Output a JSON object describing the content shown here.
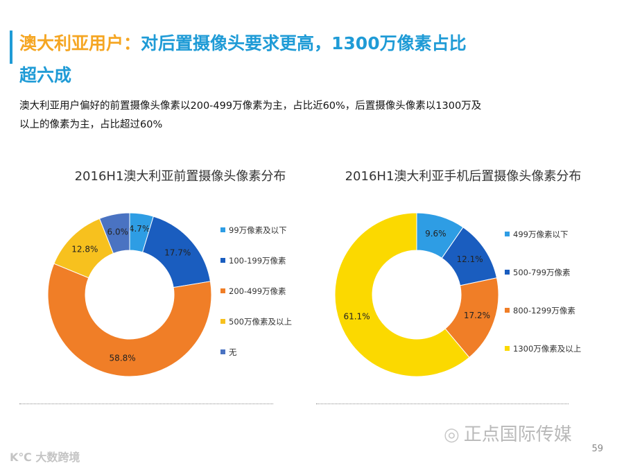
{
  "header": {
    "title_part1": "澳大利亚用户：",
    "title_part2": "对后置摄像头要求更高，1300万像素占比",
    "title_part3": "超六成"
  },
  "description": {
    "line1": "澳大利亚用户偏好的前置摄像头像素以200-499万像素为主，占比近60%，后置摄像头像素以1300万及",
    "line2": "以上的像素为主，占比超过60%"
  },
  "colors": {
    "accent": "#1f9bd6",
    "title_orange": "#f5a623"
  },
  "chart_data": [
    {
      "type": "pie",
      "title": "2016H1澳大利亚前置摄像头像素分布",
      "categories": [
        "99万像素及以下",
        "100-199万像素",
        "200-499万像素",
        "500万像素及以上",
        "无"
      ],
      "values": [
        4.7,
        17.7,
        58.8,
        12.8,
        6.0
      ],
      "labels": [
        "4.7%",
        "17.7%",
        "58.8%",
        "12.8%",
        "6.0%"
      ],
      "colors": [
        "#2e9de4",
        "#1a5dbf",
        "#f07e27",
        "#f7c11e",
        "#4a73c2"
      ],
      "legend_position": "right"
    },
    {
      "type": "pie",
      "title": "2016H1澳大利亚手机后置摄像头像素分布",
      "categories": [
        "499万像素以下",
        "500-799万像素",
        "800-1299万像素",
        "1300万像素及以上"
      ],
      "values": [
        9.6,
        12.1,
        17.2,
        61.1
      ],
      "labels": [
        "9.6%",
        "12.1%",
        "17.2%",
        "61.1%"
      ],
      "colors": [
        "#2e9de4",
        "#1a5dbf",
        "#f07e27",
        "#fbd900"
      ],
      "legend_position": "right"
    }
  ],
  "footer": {
    "watermark": "正点国际传媒",
    "page_number": "59",
    "watermark2": "K℃ 大数跨境"
  }
}
